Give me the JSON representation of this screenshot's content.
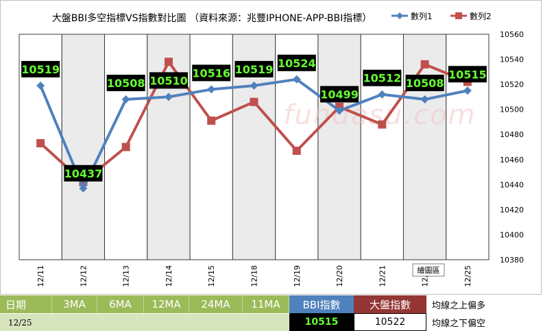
{
  "chart_data": {
    "type": "line",
    "title": "大盤BBI多空指標VS指數對比圖 （資料來源：兆豐IPHONE-APP-BBI指標）",
    "categories": [
      "12/11",
      "12/12",
      "12/13",
      "12/14",
      "12/15",
      "12/18",
      "12/19",
      "12/20",
      "12/21",
      "12/22",
      "12/25"
    ],
    "series": [
      {
        "name": "數列1",
        "color": "#4f81bd",
        "values": [
          10519,
          10437,
          10508,
          10510,
          10516,
          10519,
          10524,
          10499,
          10512,
          10508,
          10515
        ],
        "labels": [
          "10519",
          "10437",
          "10508",
          "10510",
          "10516",
          "10519",
          "10524",
          "10499",
          "10512",
          "10508",
          "10515"
        ]
      },
      {
        "name": "數列2",
        "color": "#c0504d",
        "values": [
          10473,
          10442,
          10470,
          10538,
          10491,
          10506,
          10467,
          10502,
          10488,
          10536,
          10522
        ]
      }
    ],
    "ylim": [
      10380,
      10560
    ],
    "yticks": [
      "10380",
      "10400",
      "10420",
      "10440",
      "10460",
      "10480",
      "10500",
      "10520",
      "10540",
      "10560"
    ],
    "xlabel": "",
    "ylabel": "",
    "legend": "top-right",
    "grid": "vertical bands",
    "tooltip": "繪圖區",
    "watermark": "fundasu.com"
  },
  "table": {
    "headers": [
      "日期",
      "3MA",
      "6MA",
      "12MA",
      "24MA",
      "11MA",
      "BBI指數",
      "大盤指數",
      "均線之上偏多"
    ],
    "row": {
      "date": "12/25",
      "bbi": "10515",
      "index": "10522",
      "note": "均線之下偏空"
    }
  },
  "colors": {
    "green_header": "#9bbb59",
    "light_green": "#d8e4bc",
    "blue_header": "#4f81bd",
    "red_header": "#943634",
    "label_text": "#66ff33"
  }
}
